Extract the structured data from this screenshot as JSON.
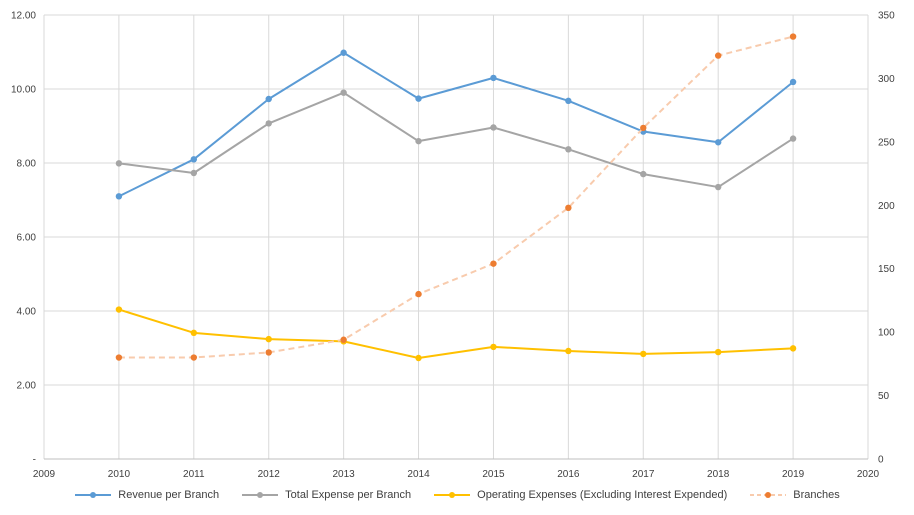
{
  "chart_data": {
    "type": "line",
    "x": [
      2010,
      2011,
      2012,
      2013,
      2014,
      2015,
      2016,
      2017,
      2018,
      2019
    ],
    "xlim": [
      2009,
      2020
    ],
    "x_ticks": [
      "2009",
      "2010",
      "2011",
      "2012",
      "2013",
      "2014",
      "2015",
      "2016",
      "2017",
      "2018",
      "2019",
      "2020"
    ],
    "y_left": {
      "lim": [
        0,
        12
      ],
      "ticks": [
        0,
        2,
        4,
        6,
        8,
        10,
        12
      ],
      "tick_labels": [
        "-",
        "2.00",
        "4.00",
        "6.00",
        "8.00",
        "10.00",
        "12.00"
      ]
    },
    "y_right": {
      "lim": [
        0,
        350
      ],
      "ticks": [
        0,
        50,
        100,
        150,
        200,
        250,
        300,
        350
      ],
      "tick_labels": [
        "0",
        "50",
        "100",
        "150",
        "200",
        "250",
        "300",
        "350"
      ]
    },
    "grid": "vertical gridlines",
    "legend_position": "bottom",
    "series": [
      {
        "name": "Revenue per Branch",
        "axis": "left",
        "color": "#5b9bd5",
        "style": "solid",
        "values": [
          7.1,
          8.1,
          9.73,
          10.98,
          9.74,
          10.3,
          9.68,
          8.85,
          8.56,
          10.19
        ]
      },
      {
        "name": "Total Expense per Branch",
        "axis": "left",
        "color": "#a5a5a5",
        "style": "solid",
        "values": [
          7.99,
          7.73,
          9.07,
          9.9,
          8.59,
          8.96,
          8.37,
          7.7,
          7.35,
          8.66
        ]
      },
      {
        "name": "Operating Expenses (Excluding Interest Expended)",
        "axis": "left",
        "color": "#ffc000",
        "style": "solid",
        "values": [
          4.04,
          3.41,
          3.24,
          3.18,
          2.73,
          3.03,
          2.92,
          2.84,
          2.89,
          2.99
        ]
      },
      {
        "name": "Branches",
        "axis": "right",
        "color": "#ed7d31",
        "style": "dashed",
        "line_color": "#f8cbad",
        "values": [
          80,
          80,
          84,
          94,
          130,
          154,
          198,
          261,
          318,
          333
        ]
      }
    ]
  }
}
